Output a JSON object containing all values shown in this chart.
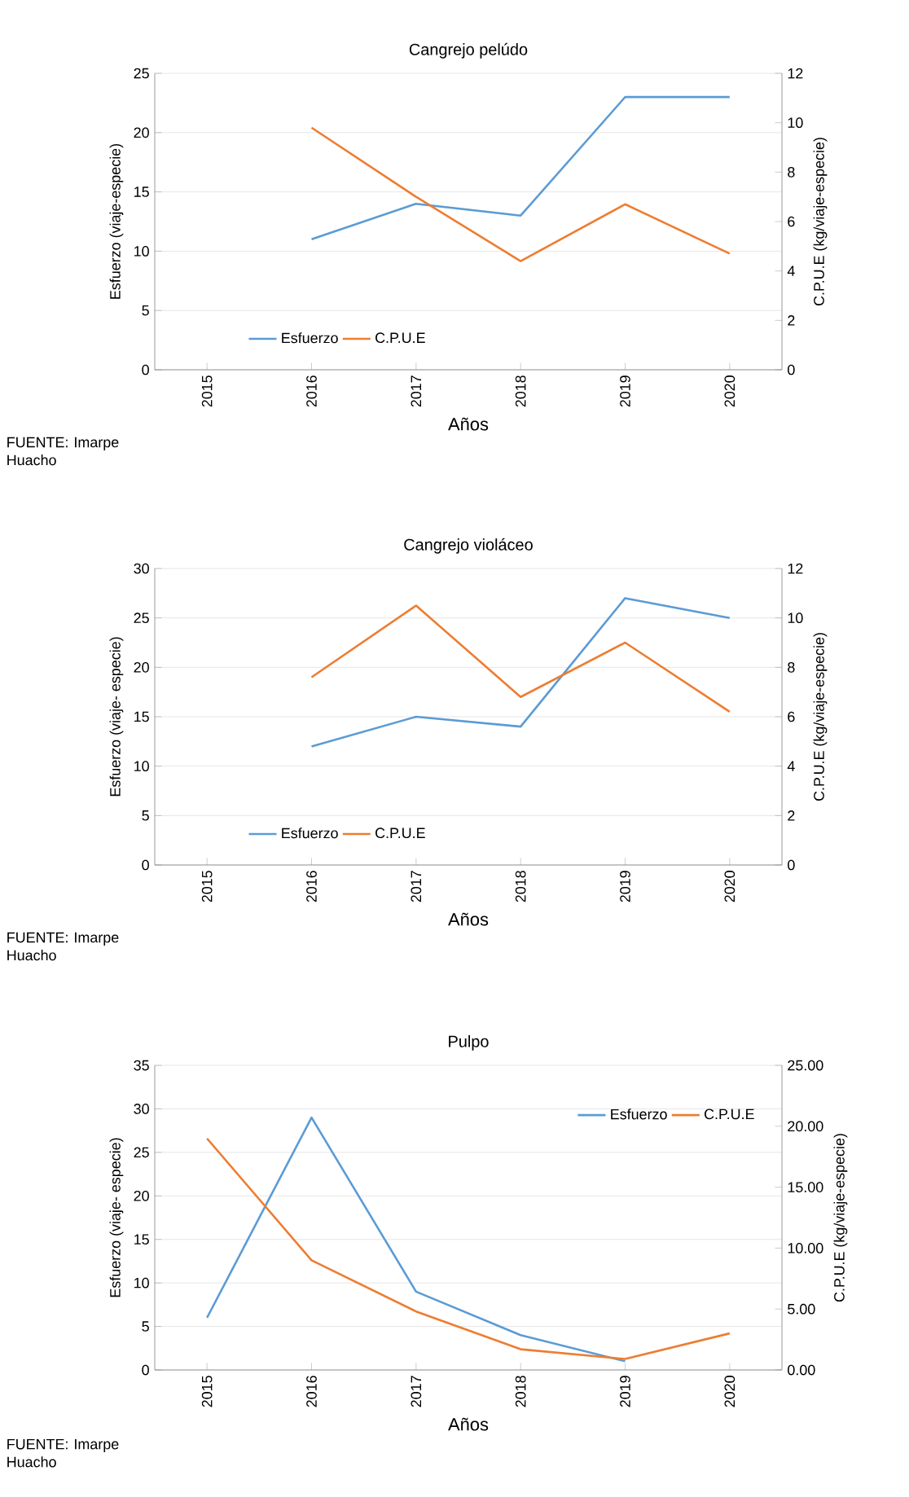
{
  "chart_data": [
    {
      "type": "line",
      "title": "Cangrejo pelúdo",
      "xlabel": "Años",
      "ylabel": "Esfuerzo (viaje-especie)",
      "y2label": "C.P.U.E (kg/viaje-especie)",
      "categories": [
        "2015",
        "2016",
        "2017",
        "2018",
        "2019",
        "2020"
      ],
      "series": [
        {
          "name": "Esfuerzo",
          "color": "#5b9bd5",
          "values": [
            null,
            11,
            14,
            13,
            23,
            23
          ]
        },
        {
          "name": "C.P.U.E",
          "color": "#ed7d31",
          "axis": "y2",
          "values": [
            null,
            9.8,
            7.0,
            4.4,
            6.7,
            4.7
          ]
        }
      ],
      "ylim": [
        0,
        25
      ],
      "yticks": [
        0,
        5,
        10,
        15,
        20,
        25
      ],
      "y2lim": [
        0,
        12
      ],
      "y2ticks": [
        0,
        2,
        4,
        6,
        8,
        10,
        12
      ],
      "grid": "y",
      "legend": "bottom left",
      "annotations": [
        "FUENTE: Imarpe Huacho"
      ]
    },
    {
      "type": "line",
      "title": "Cangrejo violáceo",
      "xlabel": "Años",
      "ylabel": "Esfuerzo (viaje- especie)",
      "y2label": "C.P.U.E (kg/viaje-especie)",
      "categories": [
        "2015",
        "2016",
        "2017",
        "2018",
        "2019",
        "2020"
      ],
      "series": [
        {
          "name": "Esfuerzo",
          "color": "#5b9bd5",
          "values": [
            null,
            12,
            15,
            14,
            27,
            25
          ]
        },
        {
          "name": "C.P.U.E",
          "color": "#ed7d31",
          "axis": "y2",
          "values": [
            null,
            7.6,
            10.5,
            6.8,
            9.0,
            6.2
          ]
        }
      ],
      "ylim": [
        0,
        30
      ],
      "yticks": [
        0,
        5,
        10,
        15,
        20,
        25,
        30
      ],
      "y2lim": [
        0,
        12
      ],
      "y2ticks": [
        0,
        2,
        4,
        6,
        8,
        10,
        12
      ],
      "grid": "y",
      "legend": "bottom left",
      "annotations": [
        "FUENTE: Imarpe Huacho"
      ]
    },
    {
      "type": "line",
      "title": "Pulpo",
      "xlabel": "Años",
      "ylabel": "Esfuerzo (viaje- especie)",
      "y2label": "C.P.U.E (kg/viaje-especie)",
      "categories": [
        "2015",
        "2016",
        "2017",
        "2018",
        "2019",
        "2020"
      ],
      "series": [
        {
          "name": "Esfuerzo",
          "color": "#5b9bd5",
          "values": [
            6,
            29,
            9,
            4,
            1,
            null
          ]
        },
        {
          "name": "C.P.U.E",
          "color": "#ed7d31",
          "axis": "y2",
          "values": [
            19.0,
            9.0,
            4.8,
            1.7,
            0.9,
            3.0
          ]
        }
      ],
      "ylim": [
        0,
        35
      ],
      "yticks": [
        0,
        5,
        10,
        15,
        20,
        25,
        30,
        35
      ],
      "y2lim": [
        0,
        25
      ],
      "y2ticks": [
        {
          "value": 0,
          "label": "0.00"
        },
        {
          "value": 5,
          "label": "5.00"
        },
        {
          "value": 10,
          "label": "10.00"
        },
        {
          "value": 15,
          "label": "15.00"
        },
        {
          "value": 20,
          "label": "20.00"
        },
        {
          "value": 25,
          "label": "25.00"
        }
      ],
      "grid": "y",
      "legend": "top right",
      "annotations": [
        "FUENTE: Imarpe Huacho"
      ]
    }
  ]
}
